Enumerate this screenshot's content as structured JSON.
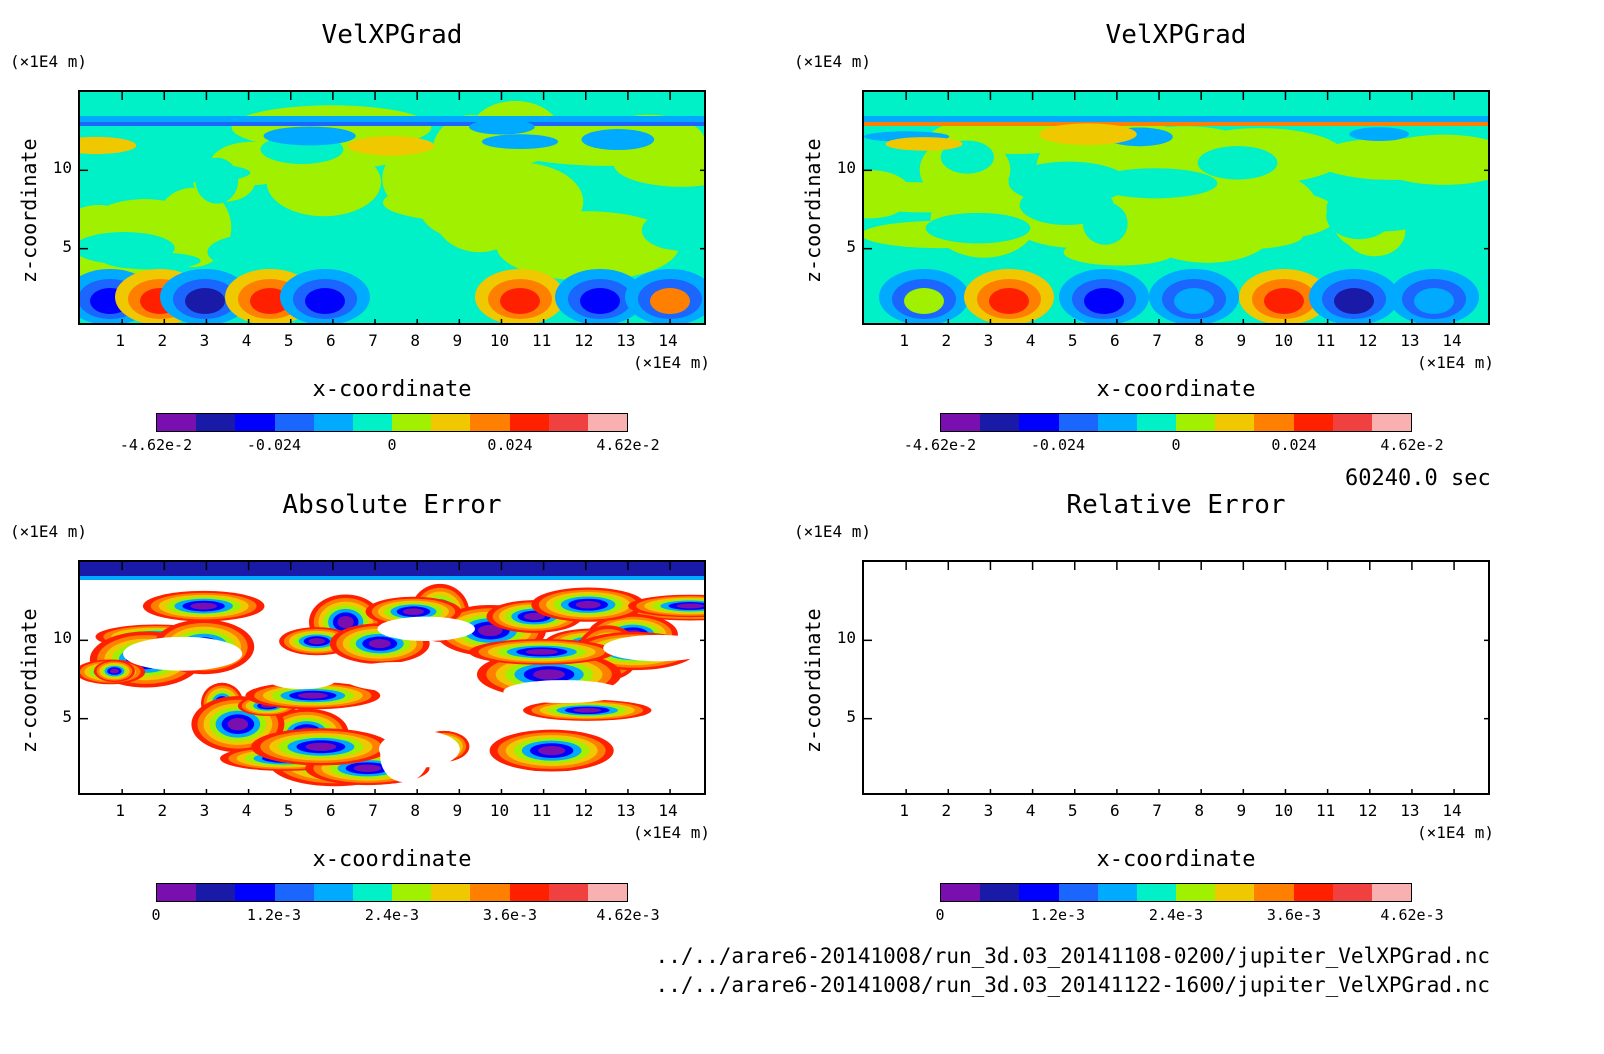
{
  "chart_data": [
    {
      "type": "heatmap",
      "title": "VelXPGrad",
      "xlabel": "x-coordinate",
      "ylabel": "z-coordinate",
      "x_unit": "(×1E4 m)",
      "y_unit": "(×1E4 m)",
      "xticks": [
        "1",
        "2",
        "3",
        "4",
        "5",
        "6",
        "7",
        "8",
        "9",
        "10",
        "11",
        "12",
        "13",
        "14"
      ],
      "yticks": [
        "5",
        "10"
      ],
      "xlim": [
        0,
        14.9
      ],
      "ylim": [
        0,
        15
      ],
      "colorbar_labels": [
        "-4.62e-2",
        "-0.024",
        "0",
        "0.024",
        "4.62e-2"
      ],
      "colorbar_range": [
        -0.0462,
        0.0462
      ]
    },
    {
      "type": "heatmap",
      "title": "VelXPGrad",
      "xlabel": "x-coordinate",
      "ylabel": "z-coordinate",
      "x_unit": "(×1E4 m)",
      "y_unit": "(×1E4 m)",
      "xticks": [
        "1",
        "2",
        "3",
        "4",
        "5",
        "6",
        "7",
        "8",
        "9",
        "10",
        "11",
        "12",
        "13",
        "14"
      ],
      "yticks": [
        "5",
        "10"
      ],
      "xlim": [
        0,
        14.9
      ],
      "ylim": [
        0,
        15
      ],
      "colorbar_labels": [
        "-4.62e-2",
        "-0.024",
        "0",
        "0.024",
        "4.62e-2"
      ],
      "colorbar_range": [
        -0.0462,
        0.0462
      ]
    },
    {
      "type": "heatmap",
      "title": "Absolute Error",
      "xlabel": "x-coordinate",
      "ylabel": "z-coordinate",
      "x_unit": "(×1E4 m)",
      "y_unit": "(×1E4 m)",
      "xticks": [
        "1",
        "2",
        "3",
        "4",
        "5",
        "6",
        "7",
        "8",
        "9",
        "10",
        "11",
        "12",
        "13",
        "14"
      ],
      "yticks": [
        "5",
        "10"
      ],
      "xlim": [
        0,
        14.9
      ],
      "ylim": [
        0,
        15
      ],
      "colorbar_labels": [
        "0",
        "1.2e-3",
        "2.4e-3",
        "3.6e-3",
        "4.62e-3"
      ],
      "colorbar_range": [
        0,
        0.00462
      ]
    },
    {
      "type": "heatmap",
      "title": "Relative Error",
      "xlabel": "x-coordinate",
      "ylabel": "z-coordinate",
      "x_unit": "(×1E4 m)",
      "y_unit": "(×1E4 m)",
      "xticks": [
        "1",
        "2",
        "3",
        "4",
        "5",
        "6",
        "7",
        "8",
        "9",
        "10",
        "11",
        "12",
        "13",
        "14"
      ],
      "yticks": [
        "5",
        "10"
      ],
      "xlim": [
        0,
        14.9
      ],
      "ylim": [
        0,
        15
      ],
      "colorbar_labels": [
        "0",
        "1.2e-3",
        "2.4e-3",
        "3.6e-3",
        "4.62e-3"
      ],
      "colorbar_range": [
        0,
        0.00462
      ]
    }
  ],
  "colormap": [
    "#7a0fb0",
    "#1a1aa8",
    "#0000ff",
    "#1a66ff",
    "#00aaff",
    "#00f0c8",
    "#a0f000",
    "#f0c800",
    "#ff8000",
    "#ff2000",
    "#f04040",
    "#f8b0b0"
  ],
  "time_label": "60240.0 sec",
  "files": [
    "../../arare6-20141008/run_3d.03_20141108-0200/jupiter_VelXPGrad.nc",
    "../../arare6-20141008/run_3d.03_20141122-1600/jupiter_VelXPGrad.nc"
  ]
}
